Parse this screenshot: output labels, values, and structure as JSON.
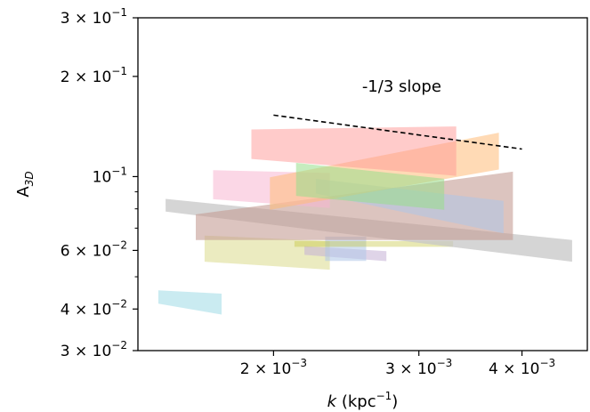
{
  "chart_data": {
    "type": "area",
    "title": "",
    "xlabel": {
      "main": "k",
      "unit": "(kpc",
      "sup": "−1",
      "close": ")"
    },
    "ylabel": {
      "main": "A",
      "sub": "3D"
    },
    "xscale": "log",
    "yscale": "log",
    "xlim": [
      0.00137,
      0.0048
    ],
    "ylim": [
      0.03,
      0.3
    ],
    "grid": false,
    "x_ticks": [
      {
        "value": 0.002,
        "mant": "2 × 10",
        "exp": "−3"
      },
      {
        "value": 0.003,
        "mant": "3 × 10",
        "exp": "−3"
      },
      {
        "value": 0.004,
        "mant": "4 × 10",
        "exp": "−3"
      }
    ],
    "y_ticks": [
      {
        "value": 0.3,
        "mant": "3 × 10",
        "exp": "−1"
      },
      {
        "value": 0.2,
        "mant": "2 × 10",
        "exp": "−1"
      },
      {
        "value": 0.1,
        "mant": "10",
        "exp": "−1"
      },
      {
        "value": 0.06,
        "mant": "6 × 10",
        "exp": "−2"
      },
      {
        "value": 0.04,
        "mant": "4 × 10",
        "exp": "−2"
      },
      {
        "value": 0.03,
        "mant": "3 × 10",
        "exp": "−2"
      }
    ],
    "y_minor_ticks": [
      0.05,
      0.07,
      0.08,
      0.09
    ],
    "x_minor_ticks": [],
    "annotation": {
      "text": "-1/3 slope",
      "x": 0.00256,
      "y": 0.18
    },
    "reference_line": {
      "style": "dashed",
      "color": "#000000",
      "x": [
        0.002,
        0.004
      ],
      "y": [
        0.153,
        0.121
      ]
    },
    "bands": [
      {
        "color": "#9edae5",
        "opacity": 0.55,
        "x": [
          0.00145,
          0.00173
        ],
        "lower": [
          0.0415,
          0.0385
        ],
        "upper": [
          0.0455,
          0.0445
        ]
      },
      {
        "color": "#dbdb8d",
        "opacity": 0.55,
        "x": [
          0.00165,
          0.00234
        ],
        "lower": [
          0.0555,
          0.0525
        ],
        "upper": [
          0.0665,
          0.064
        ]
      },
      {
        "color": "#c5b0d5",
        "opacity": 0.55,
        "x": [
          0.00218,
          0.00274
        ],
        "lower": [
          0.0582,
          0.0557
        ],
        "upper": [
          0.0618,
          0.0597
        ]
      },
      {
        "color": "#aec7e8",
        "opacity": 0.55,
        "x": [
          0.00231,
          0.00259
        ],
        "lower": [
          0.0558,
          0.0558
        ],
        "upper": [
          0.066,
          0.066
        ]
      },
      {
        "color": "#bcbd22",
        "opacity": 0.35,
        "x": [
          0.00212,
          0.0033
        ],
        "lower": [
          0.0615,
          0.0615
        ],
        "upper": [
          0.064,
          0.064
        ]
      },
      {
        "color": "#c7c7c7",
        "opacity": 0.75,
        "x": [
          0.00148,
          0.0046
        ],
        "lower": [
          0.0785,
          0.0555
        ],
        "upper": [
          0.0857,
          0.0645
        ]
      },
      {
        "color": "#c49c94",
        "opacity": 0.6,
        "x": [
          0.00161,
          0.0039
        ],
        "lower": [
          0.0645,
          0.0645
        ],
        "upper": [
          0.077,
          0.1035
        ]
      },
      {
        "color": "#f7b6d2",
        "opacity": 0.55,
        "x": [
          0.00169,
          0.00234
        ],
        "lower": [
          0.0855,
          0.0805
        ],
        "upper": [
          0.1045,
          0.1025
        ]
      },
      {
        "color": "#aec7e8",
        "opacity": 0.55,
        "x": [
          0.00225,
          0.0038
        ],
        "lower": [
          0.089,
          0.0675
        ],
        "upper": [
          0.0985,
          0.0845
        ]
      },
      {
        "color": "#ffbb78",
        "opacity": 0.55,
        "x": [
          0.00198,
          0.00375
        ],
        "lower": [
          0.0795,
          0.105
        ],
        "upper": [
          0.0995,
          0.1355
        ]
      },
      {
        "color": "#98df8a",
        "opacity": 0.55,
        "x": [
          0.00213,
          0.00322
        ],
        "lower": [
          0.0875,
          0.0795
        ],
        "upper": [
          0.11,
          0.0985
        ]
      },
      {
        "color": "#ff9896",
        "opacity": 0.5,
        "x": [
          0.00188,
          0.00333
        ],
        "lower": [
          0.113,
          0.1005
        ],
        "upper": [
          0.1385,
          0.1415
        ]
      }
    ]
  }
}
